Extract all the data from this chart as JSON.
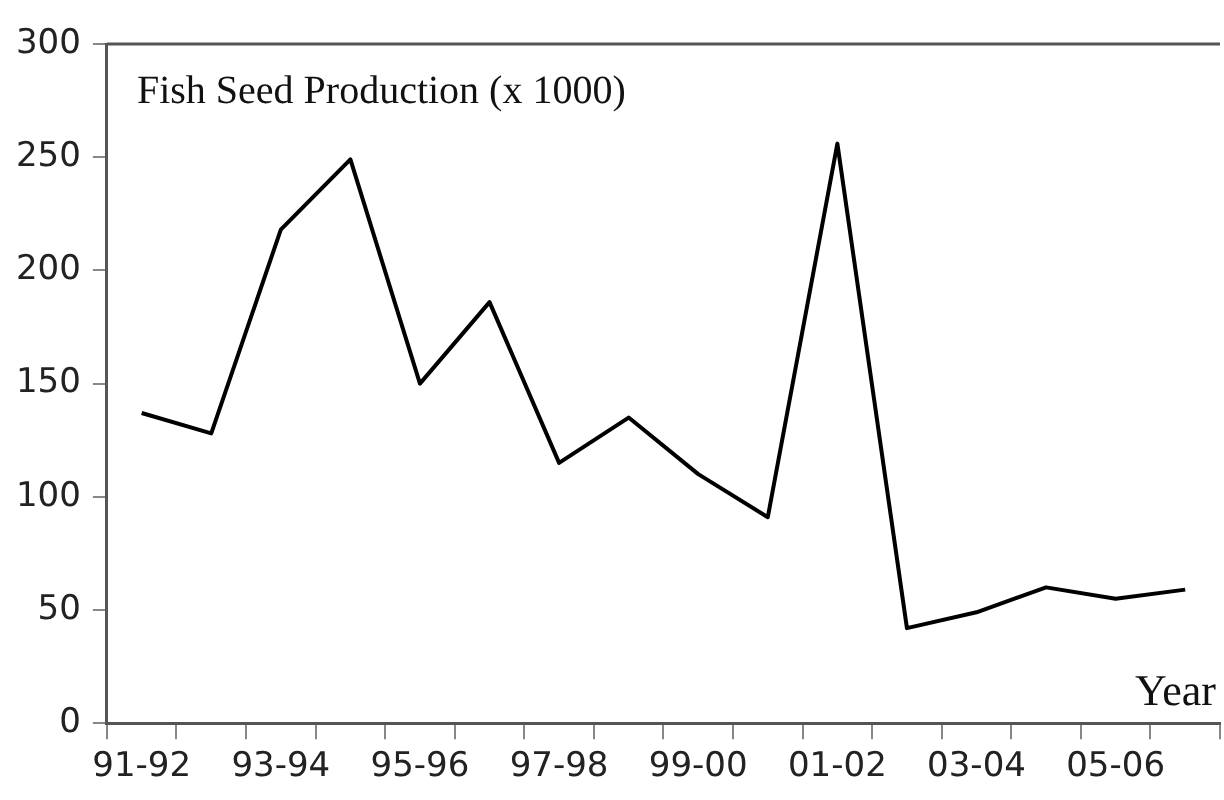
{
  "chart_data": {
    "type": "line",
    "title": "Fish Seed Production (x 1000)",
    "xlabel": "Year",
    "categories": [
      "91-92",
      null,
      "93-94",
      null,
      "95-96",
      null,
      "97-98",
      null,
      "99-00",
      null,
      "01-02",
      null,
      "03-04",
      null,
      "05-06",
      null
    ],
    "series": [
      {
        "color": "#000000",
        "values": [
          137,
          128,
          218,
          249,
          150,
          186,
          115,
          135,
          110,
          91,
          256,
          42,
          49,
          60,
          55,
          59
        ]
      }
    ],
    "ylim": [
      0,
      300
    ],
    "yticks": [
      0,
      50,
      100,
      150,
      200,
      250,
      300
    ],
    "grid": false,
    "legend": false,
    "marker": "none",
    "line_style": "solid"
  }
}
